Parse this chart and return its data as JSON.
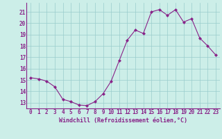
{
  "x": [
    0,
    1,
    2,
    3,
    4,
    5,
    6,
    7,
    8,
    9,
    10,
    11,
    12,
    13,
    14,
    15,
    16,
    17,
    18,
    19,
    20,
    21,
    22,
    23
  ],
  "y": [
    15.2,
    15.1,
    14.9,
    14.4,
    13.3,
    13.1,
    12.8,
    12.75,
    13.1,
    13.8,
    14.9,
    16.7,
    18.5,
    19.4,
    19.1,
    21.0,
    21.2,
    20.7,
    21.2,
    20.1,
    20.4,
    18.7,
    18.0,
    17.2
  ],
  "line_color": "#882288",
  "marker": "D",
  "marker_size": 2.0,
  "bg_color": "#cceee8",
  "grid_color": "#99cccc",
  "xlabel": "Windchill (Refroidissement éolien,°C)",
  "xlabel_color": "#882288",
  "tick_color": "#882288",
  "ylim": [
    12.5,
    21.8
  ],
  "yticks": [
    13,
    14,
    15,
    16,
    17,
    18,
    19,
    20,
    21
  ],
  "xticks": [
    0,
    1,
    2,
    3,
    4,
    5,
    6,
    7,
    8,
    9,
    10,
    11,
    12,
    13,
    14,
    15,
    16,
    17,
    18,
    19,
    20,
    21,
    22,
    23
  ],
  "xlim": [
    -0.5,
    23.5
  ],
  "tick_fontsize": 5.5,
  "xlabel_fontsize": 6.0,
  "linewidth": 0.8
}
